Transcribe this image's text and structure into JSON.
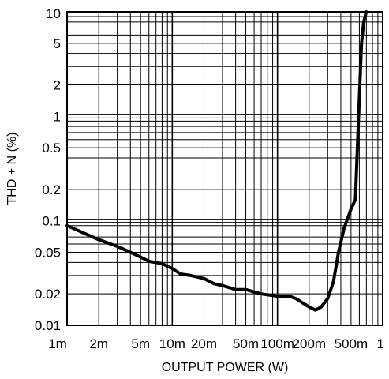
{
  "chart_data": {
    "type": "line",
    "xlabel": "OUTPUT POWER (W)",
    "ylabel": "THD + N (%)",
    "x_scale": "log",
    "y_scale": "log",
    "xlim": [
      0.001,
      1
    ],
    "ylim": [
      0.01,
      10
    ],
    "grid": true,
    "x_ticks": [
      {
        "value": 0.001,
        "label": "1m"
      },
      {
        "value": 0.002,
        "label": "2m"
      },
      {
        "value": 0.005,
        "label": "5m"
      },
      {
        "value": 0.01,
        "label": "10m"
      },
      {
        "value": 0.02,
        "label": "20m"
      },
      {
        "value": 0.05,
        "label": "50m"
      },
      {
        "value": 0.1,
        "label": "100m"
      },
      {
        "value": 0.2,
        "label": "200m"
      },
      {
        "value": 0.5,
        "label": "500m"
      },
      {
        "value": 1,
        "label": "1"
      }
    ],
    "y_ticks": [
      {
        "value": 0.01,
        "label": "0.01"
      },
      {
        "value": 0.02,
        "label": "0.02"
      },
      {
        "value": 0.05,
        "label": "0.05"
      },
      {
        "value": 0.1,
        "label": "0.1"
      },
      {
        "value": 0.2,
        "label": "0.2"
      },
      {
        "value": 0.5,
        "label": "0.5"
      },
      {
        "value": 1,
        "label": "1"
      },
      {
        "value": 2,
        "label": "2"
      },
      {
        "value": 5,
        "label": "5"
      },
      {
        "value": 10,
        "label": "10"
      }
    ],
    "series": [
      {
        "x": [
          0.001,
          0.0015,
          0.002,
          0.003,
          0.004,
          0.005,
          0.006,
          0.008,
          0.01,
          0.012,
          0.015,
          0.02,
          0.025,
          0.03,
          0.04,
          0.05,
          0.07,
          0.1,
          0.13,
          0.15,
          0.18,
          0.2,
          0.23,
          0.26,
          0.3,
          0.34,
          0.38,
          0.43,
          0.5,
          0.55,
          0.6,
          0.63,
          0.66,
          0.7
        ],
        "y": [
          0.09,
          0.075,
          0.066,
          0.057,
          0.05,
          0.045,
          0.041,
          0.039,
          0.035,
          0.031,
          0.03,
          0.028,
          0.025,
          0.024,
          0.022,
          0.022,
          0.02,
          0.019,
          0.019,
          0.018,
          0.016,
          0.015,
          0.014,
          0.015,
          0.018,
          0.026,
          0.05,
          0.085,
          0.13,
          0.16,
          1.5,
          5,
          8,
          10
        ]
      }
    ]
  }
}
